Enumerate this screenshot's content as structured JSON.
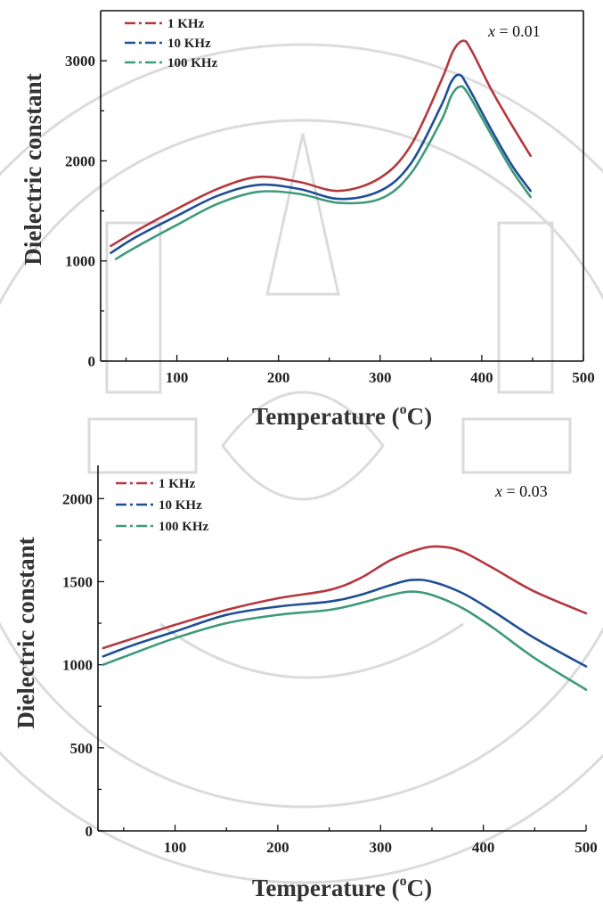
{
  "chart_data": [
    {
      "type": "line",
      "title": "",
      "annotation_var": "x",
      "annotation_value": " = 0.01",
      "xlabel": "Temperature (",
      "xlabel_sup": "o",
      "xlabel_unit": "C)",
      "ylabel": "Dielectric constant",
      "xlim": [
        25,
        500
      ],
      "ylim": [
        0,
        3500
      ],
      "xticks": [
        100,
        200,
        300,
        400,
        500
      ],
      "yticks": [
        0,
        1000,
        2000,
        3000
      ],
      "legend_position": "top-left",
      "series": [
        {
          "name": "1 KHz",
          "color": "#b5383f",
          "x": [
            35,
            60,
            100,
            140,
            180,
            220,
            260,
            300,
            330,
            360,
            372,
            382,
            390,
            410,
            430,
            448
          ],
          "y": [
            1150,
            1300,
            1520,
            1720,
            1840,
            1790,
            1700,
            1830,
            2150,
            2800,
            3100,
            3200,
            3100,
            2700,
            2350,
            2050
          ]
        },
        {
          "name": "10 KHz",
          "color": "#1f4f94",
          "x": [
            35,
            60,
            100,
            140,
            180,
            220,
            260,
            300,
            330,
            360,
            370,
            378,
            386,
            410,
            430,
            448
          ],
          "y": [
            1080,
            1240,
            1450,
            1650,
            1760,
            1720,
            1620,
            1700,
            1970,
            2550,
            2790,
            2860,
            2750,
            2300,
            1950,
            1700
          ]
        },
        {
          "name": "100 KHz",
          "color": "#3e9a7a",
          "x": [
            40,
            60,
            100,
            140,
            180,
            220,
            260,
            300,
            330,
            360,
            370,
            378,
            386,
            410,
            430,
            448
          ],
          "y": [
            1020,
            1140,
            1360,
            1570,
            1690,
            1670,
            1580,
            1620,
            1870,
            2400,
            2650,
            2740,
            2680,
            2250,
            1900,
            1640
          ]
        }
      ]
    },
    {
      "type": "line",
      "title": "",
      "annotation_var": "x",
      "annotation_value": " = 0.03",
      "xlabel": "Temperature (",
      "xlabel_sup": "o",
      "xlabel_unit": "C)",
      "ylabel": "Dielectric constant",
      "xlim": [
        25,
        500
      ],
      "ylim": [
        0,
        2200
      ],
      "xticks": [
        100,
        200,
        300,
        400,
        500
      ],
      "yticks": [
        0,
        500,
        1000,
        1500,
        2000
      ],
      "legend_position": "top-left",
      "series": [
        {
          "name": "1 KHz",
          "color": "#b5383f",
          "x": [
            30,
            60,
            100,
            150,
            200,
            250,
            280,
            310,
            340,
            360,
            380,
            410,
            450,
            500
          ],
          "y": [
            1100,
            1160,
            1240,
            1330,
            1400,
            1450,
            1520,
            1630,
            1700,
            1710,
            1680,
            1580,
            1440,
            1310
          ]
        },
        {
          "name": "10 KHz",
          "color": "#1f4f94",
          "x": [
            30,
            60,
            100,
            150,
            200,
            250,
            280,
            310,
            330,
            350,
            380,
            410,
            450,
            500
          ],
          "y": [
            1050,
            1120,
            1200,
            1300,
            1350,
            1380,
            1420,
            1480,
            1510,
            1500,
            1430,
            1320,
            1160,
            990
          ]
        },
        {
          "name": "100 KHz",
          "color": "#3e9a7a",
          "x": [
            30,
            60,
            100,
            150,
            200,
            250,
            280,
            310,
            330,
            350,
            380,
            410,
            450,
            500
          ],
          "y": [
            1000,
            1070,
            1160,
            1250,
            1300,
            1330,
            1370,
            1420,
            1440,
            1420,
            1340,
            1220,
            1040,
            850
          ]
        }
      ]
    }
  ]
}
